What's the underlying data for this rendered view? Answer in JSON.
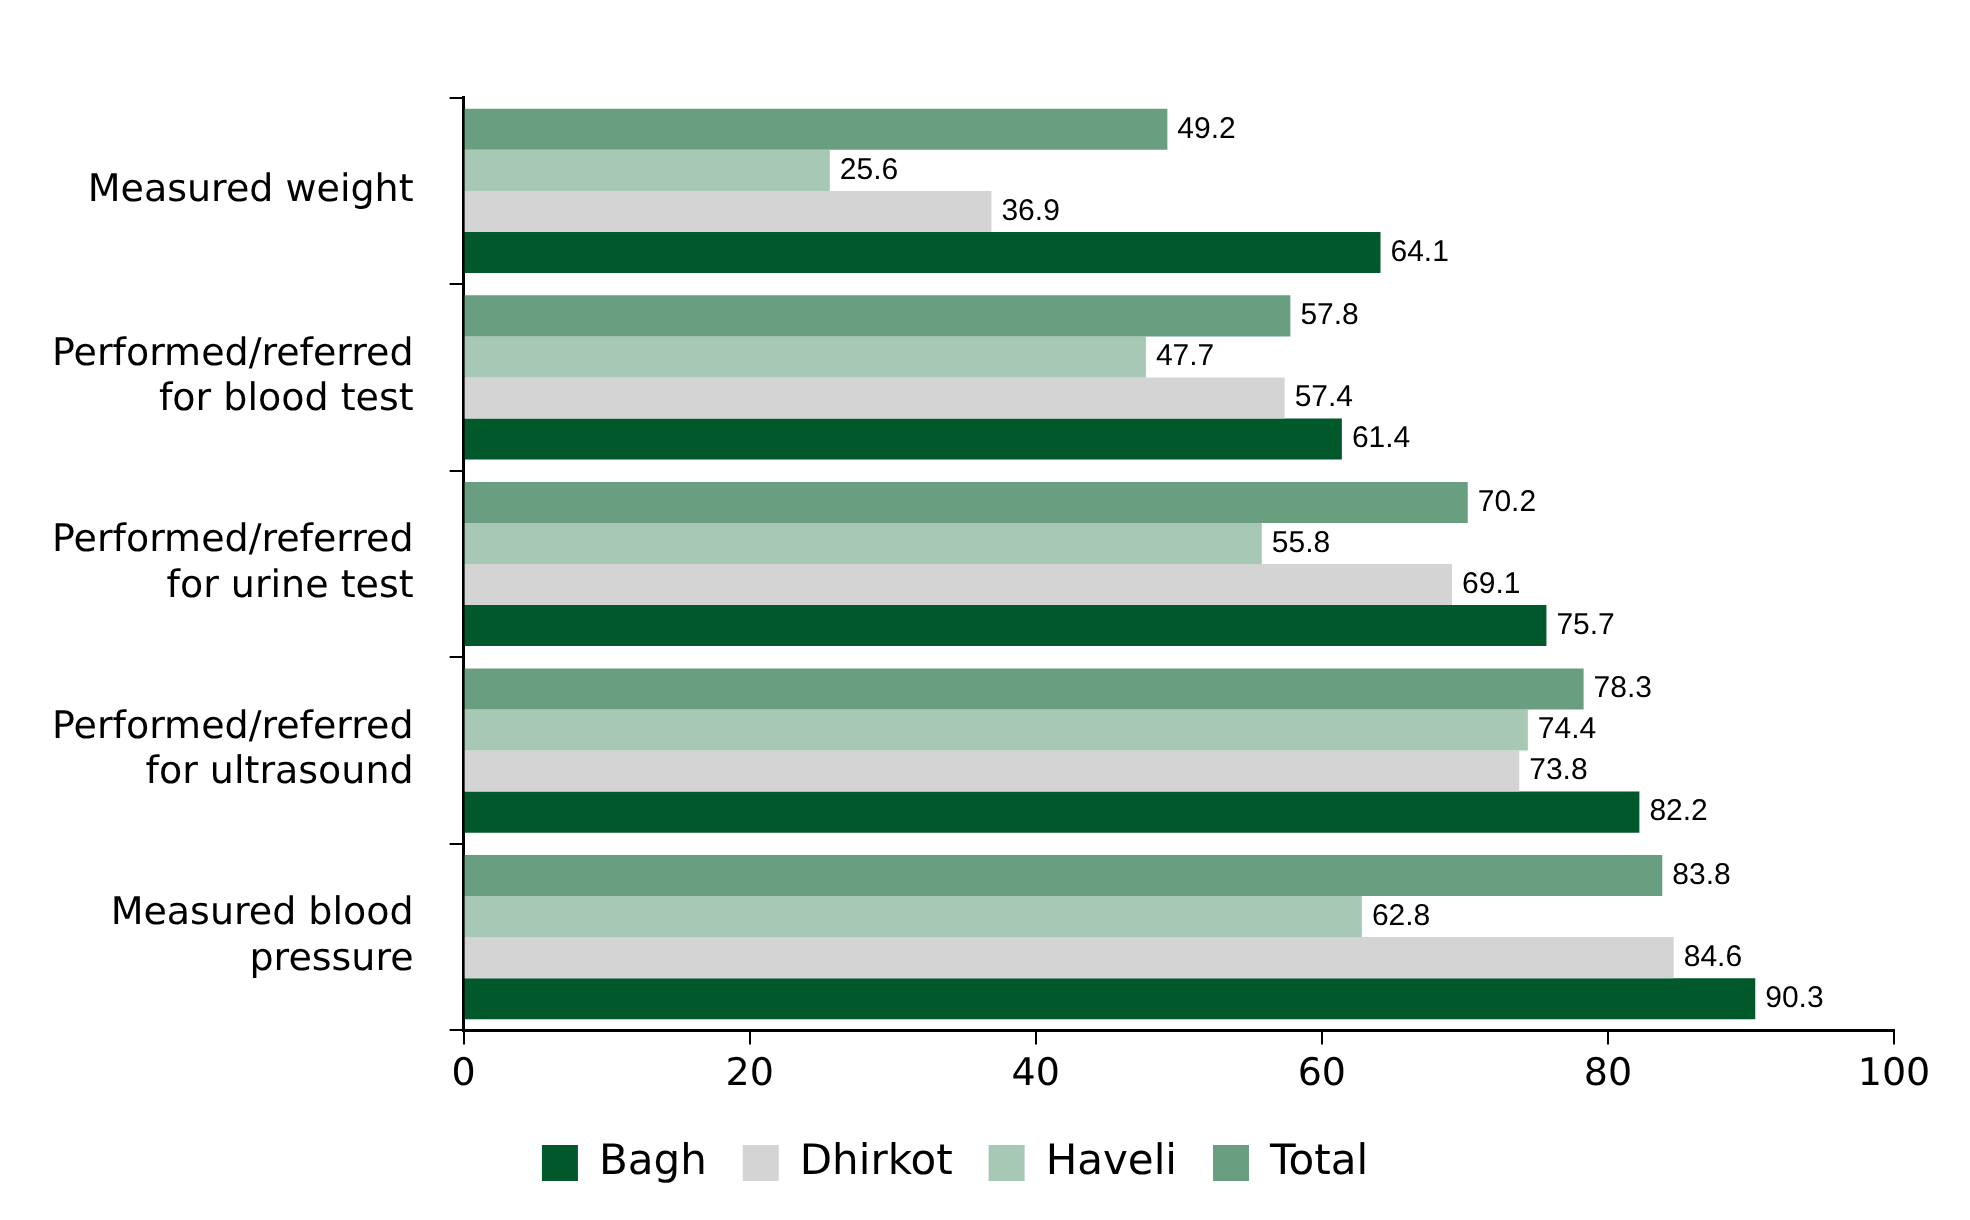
{
  "chart_data": {
    "type": "bar",
    "orientation": "horizontal",
    "categories": [
      "Measured weight",
      "Performed/referred for blood test",
      "Performed/referred for urine test",
      "Performed/referred for ultrasound",
      "Measured blood pressure"
    ],
    "series": [
      {
        "name": "Bagh",
        "color": "#00582b",
        "values": [
          64.1,
          61.4,
          75.7,
          82.2,
          90.3
        ]
      },
      {
        "name": "Dhirkot",
        "color": "#d4d4d4",
        "values": [
          36.9,
          57.4,
          69.1,
          73.8,
          84.6
        ]
      },
      {
        "name": "Haveli",
        "color": "#a6c8b4",
        "values": [
          25.6,
          47.7,
          55.8,
          74.4,
          62.8
        ]
      },
      {
        "name": "Total",
        "color": "#6a9e80",
        "values": [
          49.2,
          57.8,
          70.2,
          78.3,
          83.8
        ]
      }
    ],
    "xlim": [
      0,
      100
    ],
    "xticks": [
      0,
      20,
      40,
      60,
      80,
      100
    ],
    "grid": false,
    "legend": "bottom",
    "data_labels": true
  }
}
